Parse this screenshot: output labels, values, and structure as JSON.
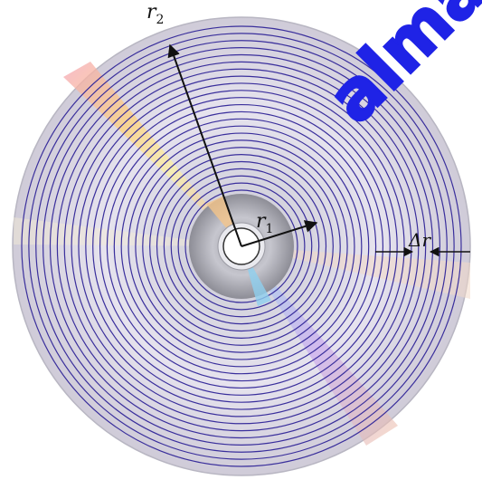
{
  "labels": {
    "r2_main": "r",
    "r2_sub": "2",
    "r1_main": "r",
    "r1_sub": "1",
    "dr_main": "Δr"
  },
  "watermark": "alma",
  "track_count": 24,
  "colors": {
    "track": "#3a2f9c",
    "arrow": "#111111",
    "disc_base": "#d9d9e2",
    "watermark": "#1f23e6"
  }
}
